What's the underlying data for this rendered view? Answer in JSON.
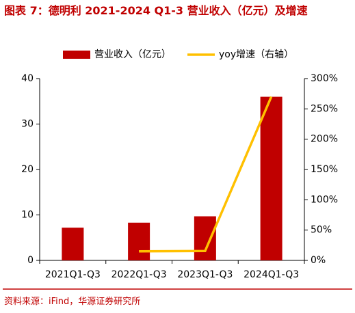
{
  "title": "图表 7：德明利 2021-2024 Q1-3 营业收入（亿元）及增速",
  "source": "资料来源：iFind，华源证券研究所",
  "chart_data": {
    "type": "bar",
    "categories": [
      "2021Q1-Q3",
      "2022Q1-Q3",
      "2023Q1-Q3",
      "2024Q1-Q3"
    ],
    "series": [
      {
        "name": "营业收入（亿元）",
        "color": "#c00000",
        "type": "bar",
        "values": [
          7.2,
          8.3,
          9.7,
          36.0
        ]
      },
      {
        "name": "yoy增速（右轴）",
        "color": "#ffc000",
        "type": "line",
        "axis": "y2",
        "values": [
          null,
          15,
          15.5,
          270
        ]
      }
    ],
    "ylim": [
      0,
      40
    ],
    "yticks": [
      0,
      10,
      20,
      30,
      40
    ],
    "y2lim": [
      0,
      300
    ],
    "y2ticks": [
      {
        "value": 0,
        "label": "0%"
      },
      {
        "value": 50,
        "label": "50%"
      },
      {
        "value": 100,
        "label": "100%"
      },
      {
        "value": 150,
        "label": "150%"
      },
      {
        "value": 200,
        "label": "200%"
      },
      {
        "value": 250,
        "label": "250%"
      },
      {
        "value": 300,
        "label": "300%"
      }
    ],
    "legend": "top"
  }
}
